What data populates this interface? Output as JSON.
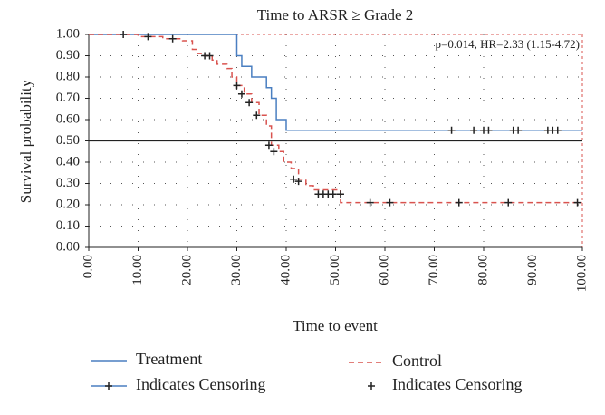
{
  "chart_data": {
    "type": "line",
    "title": "Time to ARSR ≥ Grade 2",
    "x_label": "Time to event",
    "y_label": "Survival probability",
    "annotation": "p=0.014, HR=2.33 (1.15-4.72)",
    "reference_line": 0.5,
    "xlim": [
      0,
      100
    ],
    "ylim": [
      0,
      1
    ],
    "xticks": [
      {
        "value": 0,
        "label": "0.00"
      },
      {
        "value": 10,
        "label": "10.00"
      },
      {
        "value": 20,
        "label": "20.00"
      },
      {
        "value": 30,
        "label": "30.00"
      },
      {
        "value": 40,
        "label": "40.00"
      },
      {
        "value": 50,
        "label": "50.00"
      },
      {
        "value": 60,
        "label": "60.00"
      },
      {
        "value": 70,
        "label": "70.00"
      },
      {
        "value": 80,
        "label": "80.00"
      },
      {
        "value": 90,
        "label": "90.00"
      },
      {
        "value": 100,
        "label": "100.00"
      }
    ],
    "yticks": [
      {
        "value": 0,
        "label": "0.00"
      },
      {
        "value": 0.1,
        "label": "0.10"
      },
      {
        "value": 0.2,
        "label": "0.20"
      },
      {
        "value": 0.3,
        "label": "0.30"
      },
      {
        "value": 0.4,
        "label": "0.40"
      },
      {
        "value": 0.5,
        "label": "0.50"
      },
      {
        "value": 0.6,
        "label": "0.60"
      },
      {
        "value": 0.7,
        "label": "0.70"
      },
      {
        "value": 0.8,
        "label": "0.80"
      },
      {
        "value": 0.9,
        "label": "0.90"
      },
      {
        "value": 1,
        "label": "1.00"
      }
    ],
    "grid": true,
    "series": [
      {
        "name": "Treatment",
        "color": "#4a7fc1",
        "style": "step",
        "x": [
          0,
          30,
          31,
          33,
          36,
          37,
          38,
          40,
          100
        ],
        "values": [
          1,
          0.9,
          0.85,
          0.8,
          0.75,
          0.7,
          0.6,
          0.55,
          0.55
        ]
      },
      {
        "name": "Control",
        "color": "#d9534f",
        "style": "dashed-step",
        "x": [
          0,
          10,
          15,
          19,
          21,
          22,
          23,
          25,
          26,
          28,
          29,
          30,
          31.5,
          33,
          34.5,
          36,
          37,
          38.5,
          39.5,
          41,
          42.5,
          44,
          45.5,
          51,
          100
        ],
        "values": [
          1,
          0.99,
          0.98,
          0.97,
          0.93,
          0.91,
          0.9,
          0.88,
          0.86,
          0.84,
          0.8,
          0.76,
          0.72,
          0.68,
          0.62,
          0.57,
          0.48,
          0.45,
          0.4,
          0.37,
          0.32,
          0.29,
          0.27,
          0.21,
          0.21
        ]
      },
      {
        "name": "Indicates Censoring",
        "color": "#4a7fc1",
        "style": "censor",
        "x": [
          73.5,
          78,
          80,
          81,
          86,
          87,
          93,
          94,
          95
        ],
        "values": [
          0.55,
          0.55,
          0.55,
          0.55,
          0.55,
          0.55,
          0.55,
          0.55,
          0.55
        ]
      },
      {
        "name": "Indicates Censoring",
        "color": "#222222",
        "style": "censor",
        "x": [
          7,
          12,
          17,
          23.5,
          24.5,
          30,
          31,
          32.5,
          34,
          36.5,
          37.5,
          41.5,
          42.5,
          46.5,
          47.5,
          48.5,
          49.5,
          51,
          57,
          61,
          75,
          85,
          99
        ],
        "values": [
          1,
          0.99,
          0.98,
          0.9,
          0.9,
          0.76,
          0.72,
          0.68,
          0.62,
          0.48,
          0.45,
          0.32,
          0.31,
          0.25,
          0.25,
          0.25,
          0.25,
          0.25,
          0.21,
          0.21,
          0.21,
          0.21,
          0.21
        ]
      }
    ]
  }
}
